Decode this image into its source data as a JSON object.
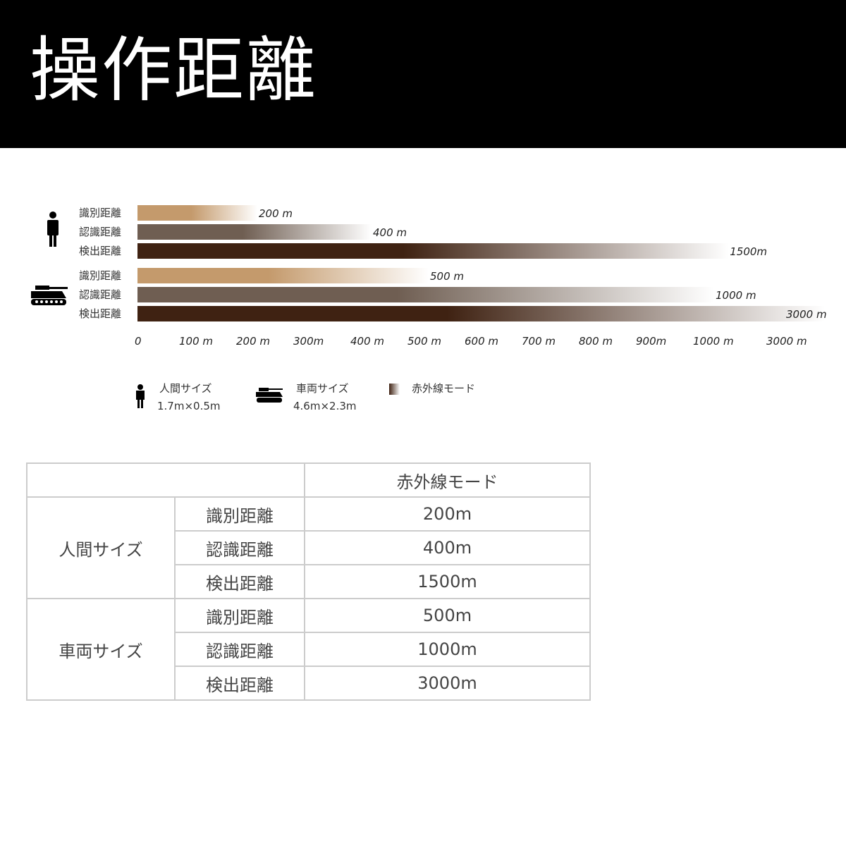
{
  "title": "操作距離",
  "chart_data": {
    "type": "bar",
    "orientation": "horizontal",
    "groups": [
      {
        "name": "人間サイズ",
        "icon": "person-icon",
        "bars": [
          {
            "label": "識別距離",
            "value": 200,
            "value_label": "200 m"
          },
          {
            "label": "認識距離",
            "value": 400,
            "value_label": "400 m"
          },
          {
            "label": "検出距離",
            "value": 1500,
            "value_label": "1500m"
          }
        ]
      },
      {
        "name": "車両サイズ",
        "icon": "tank-icon",
        "bars": [
          {
            "label": "識別距離",
            "value": 500,
            "value_label": "500 m"
          },
          {
            "label": "認識距離",
            "value": 1000,
            "value_label": "1000 m"
          },
          {
            "label": "検出距離",
            "value": 3000,
            "value_label": "3000 m"
          }
        ]
      }
    ],
    "x_ticks": [
      0,
      100,
      200,
      300,
      400,
      500,
      600,
      700,
      800,
      900,
      1000,
      3000
    ],
    "x_tick_labels": [
      "0",
      "100 m",
      "200 m",
      "300m",
      "400 m",
      "500 m",
      "600 m",
      "700 m",
      "800 m",
      "900m",
      "1000 m",
      "3000 m"
    ],
    "x_scale": "non-linear (evenly spaced ticks)",
    "colors": {
      "識別距離": "#c49a6c",
      "認識距離": "#6f5e52",
      "検出距離": "#3f2212"
    },
    "gradient": "fades to white at bar end"
  },
  "legend": [
    {
      "icon": "person-icon",
      "label": "人間サイズ",
      "sub": "1.7m×0.5m"
    },
    {
      "icon": "tank-icon",
      "label": "車両サイズ",
      "sub": "4.6m×2.3m"
    },
    {
      "icon": "gradient-swatch",
      "label": "赤外線モード"
    }
  ],
  "table": {
    "header": "赤外線モード",
    "groups": [
      {
        "name": "人間サイズ",
        "rows": [
          [
            "識別距離",
            "200m"
          ],
          [
            "認識距離",
            "400m"
          ],
          [
            "検出距離",
            "1500m"
          ]
        ]
      },
      {
        "name": "車両サイズ",
        "rows": [
          [
            "識別距離",
            "500m"
          ],
          [
            "認識距離",
            "1000m"
          ],
          [
            "検出距離",
            "3000m"
          ]
        ]
      }
    ]
  }
}
